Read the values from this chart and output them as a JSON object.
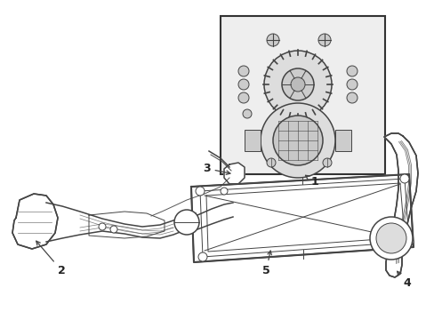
{
  "bg_color": "#ffffff",
  "line_color": "#444444",
  "box_fill": "#eeeeee",
  "box_border": "#333333",
  "label_color": "#222222",
  "lw_main": 1.1,
  "lw_thin": 0.7,
  "lw_thick": 1.5
}
